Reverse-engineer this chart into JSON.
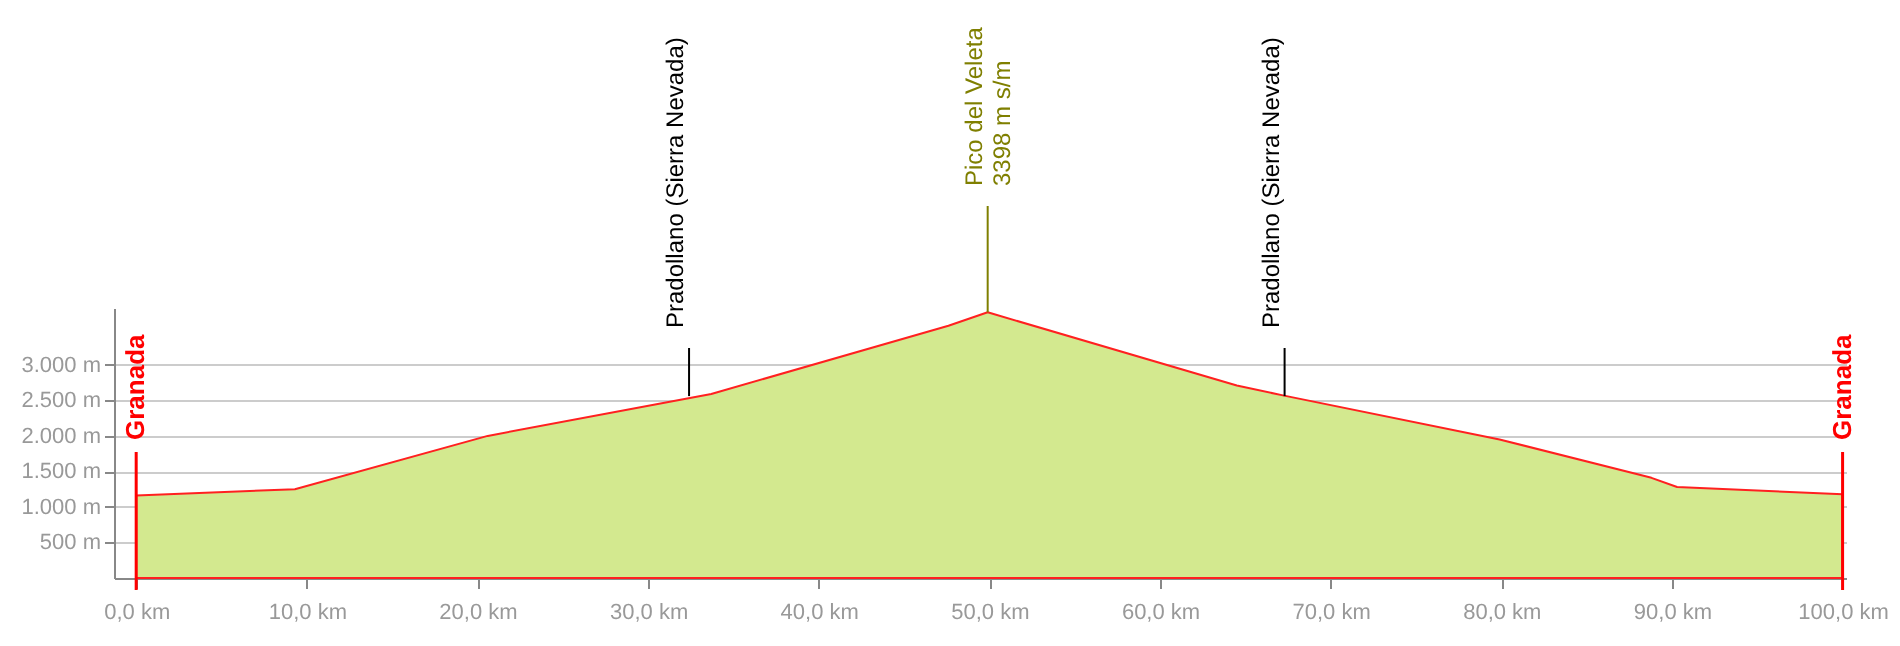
{
  "chart_data": {
    "type": "area",
    "x": [
      0,
      9.3,
      20.6,
      33.7,
      47.6,
      49.9,
      64.5,
      67.2,
      79.9,
      88.8,
      90.3,
      100
    ],
    "series": [
      {
        "color": "#d3e98f",
        "values": [
          1160,
          1250,
          2000,
          2590,
          3550,
          3740,
          2710,
          2570,
          1950,
          1410,
          1280,
          1180
        ]
      }
    ],
    "xlim": [
      -1.3,
      100.2
    ],
    "ylim": [
      0,
      3800
    ],
    "xticks": [
      {
        "value": 0,
        "label": "0,0 km"
      },
      {
        "value": 10,
        "label": "10,0 km"
      },
      {
        "value": 20,
        "label": "20,0 km"
      },
      {
        "value": 30,
        "label": "30,0 km"
      },
      {
        "value": 40,
        "label": "40,0 km"
      },
      {
        "value": 50,
        "label": "50,0 km"
      },
      {
        "value": 60,
        "label": "60,0 km"
      },
      {
        "value": 70,
        "label": "70,0 km"
      },
      {
        "value": 80,
        "label": "80,0 km"
      },
      {
        "value": 90,
        "label": "90,0 km"
      },
      {
        "value": 100,
        "label": "100,0 km"
      }
    ],
    "yticks": [
      {
        "value": 500,
        "label": "500 m"
      },
      {
        "value": 1000,
        "label": "1.000 m"
      },
      {
        "value": 1500,
        "label": "1.500 m"
      },
      {
        "value": 2000,
        "label": "2.000 m"
      },
      {
        "value": 2500,
        "label": "2.500 m"
      },
      {
        "value": 3000,
        "label": "3.000 m"
      }
    ],
    "grid": "y",
    "ref_lines": [
      {
        "axis": "x",
        "value": 0,
        "label": "Granada",
        "color": "#ff0000"
      },
      {
        "axis": "x",
        "value": 100,
        "label": "Granada",
        "color": "#ff0000"
      }
    ],
    "annotations": [
      {
        "text": "Pradollano (Sierra Nevada)",
        "x": 32.4,
        "y": 2560
      },
      {
        "text": "Pico del Veleta\n3398 m s/m",
        "x": 49.9,
        "y": 3740
      },
      {
        "text": "Pradollano (Sierra Nevada)",
        "x": 67.3,
        "y": 2560
      }
    ]
  }
}
